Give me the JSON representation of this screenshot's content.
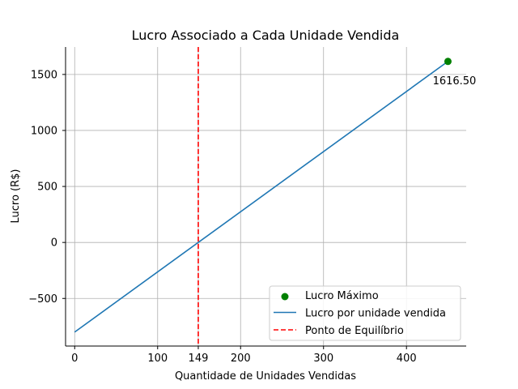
{
  "chart_data": {
    "type": "line",
    "title": "Lucro Associado a Cada Unidade Vendida",
    "xlabel": "Quantidade de Unidades Vendidas",
    "ylabel": "Lucro (R$)",
    "xlim": [
      -11,
      472
    ],
    "ylim": [
      -925,
      1745
    ],
    "xticks": [
      0,
      100,
      149,
      200,
      300,
      400
    ],
    "xtick_labels": [
      "0",
      "100",
      "149",
      "200",
      "300",
      "400"
    ],
    "yticks": [
      -500,
      0,
      500,
      1000,
      1500
    ],
    "ytick_labels": [
      "−500",
      "0",
      "500",
      "1000",
      "1500"
    ],
    "grid": true,
    "legend_position": "lower right",
    "series": [
      {
        "name": "Lucro por unidade vendida",
        "kind": "line",
        "color": "#1f77b4",
        "x": [
          0,
          450
        ],
        "y": [
          -800,
          1616.5
        ]
      },
      {
        "name": "Ponto de Equilíbrio",
        "kind": "vline",
        "color": "#ff0000",
        "x": 149
      },
      {
        "name": "Lucro Máximo",
        "kind": "scatter",
        "color": "#008000",
        "x": [
          450
        ],
        "y": [
          1616.5
        ]
      }
    ],
    "annotations": [
      {
        "text": "1616.50",
        "x": 450,
        "y": 1616.5
      }
    ],
    "legend": [
      "Lucro Máximo",
      "Lucro por unidade vendida",
      "Ponto de Equilíbrio"
    ]
  }
}
